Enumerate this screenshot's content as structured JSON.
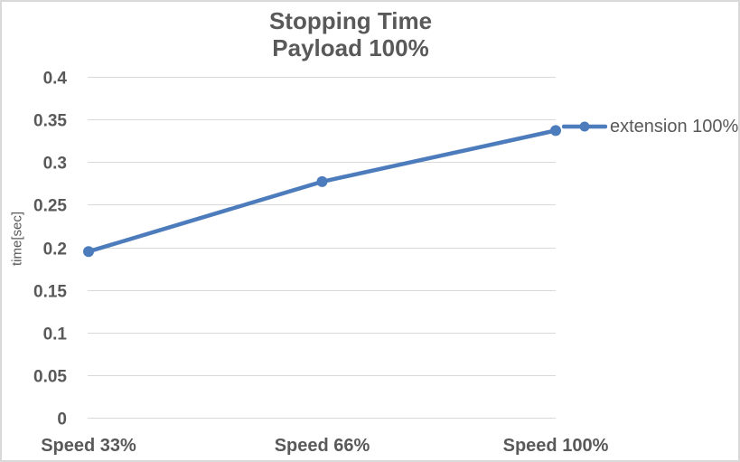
{
  "frame": {
    "background": "#ffffff",
    "border_color": "#d9d9d9"
  },
  "chart_data": {
    "type": "line",
    "title": "Stopping Time",
    "subtitle": "Payload 100%",
    "categories": [
      "Speed 33%",
      "Speed 66%",
      "Speed 100%"
    ],
    "series": [
      {
        "name": "extension 100%",
        "values": [
          0.195,
          0.277,
          0.337
        ],
        "color": "#4d7cbc",
        "marker": "circle"
      }
    ],
    "xlabel": "",
    "ylabel": "time[sec]",
    "ylim": [
      0,
      0.4
    ],
    "ytick_step": 0.05,
    "ytick_labels": [
      "0",
      "0.05",
      "0.1",
      "0.15",
      "0.2",
      "0.25",
      "0.3",
      "0.35",
      "0.4"
    ],
    "grid": "horizontal",
    "gridline_color": "#d9d9d9",
    "text_color": "#595959",
    "legend_position": "right-of-last-point"
  }
}
